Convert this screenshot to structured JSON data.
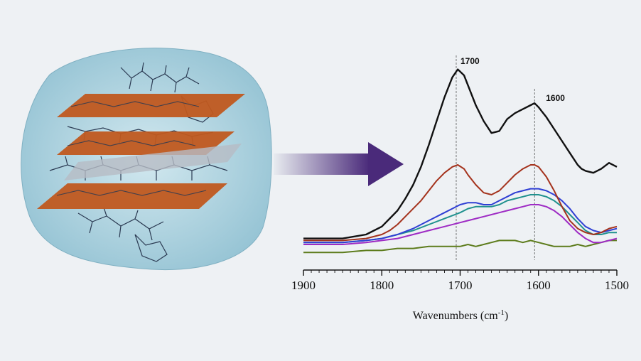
{
  "chart_data": {
    "type": "line",
    "xlabel": "Wavenumbers (cm",
    "xlabel_superscript": "-1",
    "xlabel_suffix": ")",
    "ylabel": "",
    "xlim": [
      1900,
      1500
    ],
    "xticks": [
      "1900",
      "1800",
      "1700",
      "1600",
      "1500"
    ],
    "ylim": [
      0,
      1
    ],
    "grid": false,
    "reference_lines": [
      {
        "x": 1705,
        "label": "1700"
      },
      {
        "x": 1605,
        "label": "1600"
      }
    ],
    "peak_labels": [
      "1700",
      "1600"
    ],
    "series": [
      {
        "color": "#111111",
        "x": [
          1900,
          1850,
          1820,
          1800,
          1790,
          1780,
          1770,
          1760,
          1750,
          1740,
          1730,
          1720,
          1710,
          1703,
          1695,
          1690,
          1680,
          1670,
          1660,
          1650,
          1645,
          1640,
          1630,
          1620,
          1610,
          1605,
          1600,
          1590,
          1580,
          1570,
          1560,
          1550,
          1545,
          1540,
          1530,
          1520,
          1510,
          1500
        ],
        "y": [
          0.03,
          0.03,
          0.05,
          0.09,
          0.13,
          0.17,
          0.23,
          0.3,
          0.39,
          0.5,
          0.62,
          0.74,
          0.84,
          0.88,
          0.85,
          0.8,
          0.7,
          0.62,
          0.56,
          0.57,
          0.6,
          0.63,
          0.66,
          0.68,
          0.7,
          0.71,
          0.69,
          0.64,
          0.58,
          0.52,
          0.46,
          0.4,
          0.38,
          0.37,
          0.36,
          0.38,
          0.41,
          0.39
        ]
      },
      {
        "color": "#a4321c",
        "x": [
          1900,
          1850,
          1820,
          1800,
          1790,
          1780,
          1770,
          1760,
          1750,
          1740,
          1730,
          1720,
          1710,
          1703,
          1695,
          1690,
          1680,
          1670,
          1660,
          1650,
          1640,
          1630,
          1620,
          1610,
          1605,
          1600,
          1590,
          1580,
          1570,
          1560,
          1550,
          1540,
          1530,
          1520,
          1510,
          1500
        ],
        "y": [
          0.02,
          0.02,
          0.03,
          0.05,
          0.07,
          0.1,
          0.14,
          0.18,
          0.22,
          0.27,
          0.32,
          0.36,
          0.39,
          0.4,
          0.38,
          0.35,
          0.3,
          0.26,
          0.25,
          0.27,
          0.31,
          0.35,
          0.38,
          0.4,
          0.4,
          0.39,
          0.34,
          0.27,
          0.19,
          0.12,
          0.08,
          0.06,
          0.05,
          0.06,
          0.08,
          0.09
        ]
      },
      {
        "color": "#2f3fd4",
        "x": [
          1900,
          1850,
          1820,
          1800,
          1780,
          1760,
          1740,
          1720,
          1700,
          1690,
          1680,
          1670,
          1660,
          1650,
          1640,
          1630,
          1620,
          1610,
          1600,
          1590,
          1580,
          1570,
          1560,
          1550,
          1540,
          1530,
          1520,
          1510,
          1500
        ],
        "y": [
          0.01,
          0.01,
          0.02,
          0.03,
          0.05,
          0.08,
          0.12,
          0.16,
          0.2,
          0.21,
          0.21,
          0.2,
          0.2,
          0.22,
          0.24,
          0.26,
          0.27,
          0.28,
          0.28,
          0.27,
          0.25,
          0.22,
          0.18,
          0.13,
          0.09,
          0.07,
          0.06,
          0.07,
          0.08
        ]
      },
      {
        "color": "#20918e",
        "x": [
          1900,
          1850,
          1820,
          1800,
          1780,
          1760,
          1740,
          1720,
          1700,
          1690,
          1680,
          1670,
          1660,
          1650,
          1640,
          1630,
          1620,
          1610,
          1600,
          1590,
          1580,
          1570,
          1560,
          1550,
          1540,
          1530,
          1520,
          1510,
          1500
        ],
        "y": [
          0.01,
          0.01,
          0.02,
          0.03,
          0.05,
          0.07,
          0.1,
          0.13,
          0.16,
          0.18,
          0.19,
          0.19,
          0.19,
          0.2,
          0.22,
          0.23,
          0.24,
          0.25,
          0.25,
          0.24,
          0.22,
          0.19,
          0.15,
          0.11,
          0.07,
          0.05,
          0.05,
          0.06,
          0.06
        ]
      },
      {
        "color": "#9e2bc4",
        "x": [
          1900,
          1850,
          1820,
          1800,
          1780,
          1760,
          1740,
          1720,
          1700,
          1690,
          1680,
          1670,
          1660,
          1650,
          1640,
          1630,
          1620,
          1610,
          1600,
          1590,
          1580,
          1570,
          1560,
          1550,
          1540,
          1530,
          1520,
          1510,
          1500
        ],
        "y": [
          0.0,
          0.0,
          0.01,
          0.02,
          0.03,
          0.05,
          0.07,
          0.09,
          0.11,
          0.12,
          0.13,
          0.14,
          0.15,
          0.16,
          0.17,
          0.18,
          0.19,
          0.2,
          0.2,
          0.19,
          0.17,
          0.14,
          0.1,
          0.06,
          0.03,
          0.01,
          0.01,
          0.02,
          0.03
        ]
      },
      {
        "color": "#5d7c1c",
        "x": [
          1900,
          1850,
          1820,
          1800,
          1780,
          1760,
          1740,
          1720,
          1700,
          1690,
          1680,
          1670,
          1660,
          1650,
          1640,
          1630,
          1620,
          1610,
          1600,
          1590,
          1580,
          1570,
          1560,
          1550,
          1540,
          1530,
          1520,
          1510,
          1500
        ],
        "y": [
          -0.04,
          -0.04,
          -0.03,
          -0.03,
          -0.02,
          -0.02,
          -0.01,
          -0.01,
          -0.01,
          0.0,
          -0.01,
          0.0,
          0.01,
          0.02,
          0.02,
          0.02,
          0.01,
          0.02,
          0.01,
          0.0,
          -0.01,
          -0.01,
          -0.01,
          0.0,
          -0.01,
          0.0,
          0.01,
          0.02,
          0.02
        ]
      }
    ]
  },
  "illustration": {
    "arrow_color": "#4a2a7a",
    "sheet_color": "#c0581f",
    "blob_color": "#a9cfdc"
  }
}
